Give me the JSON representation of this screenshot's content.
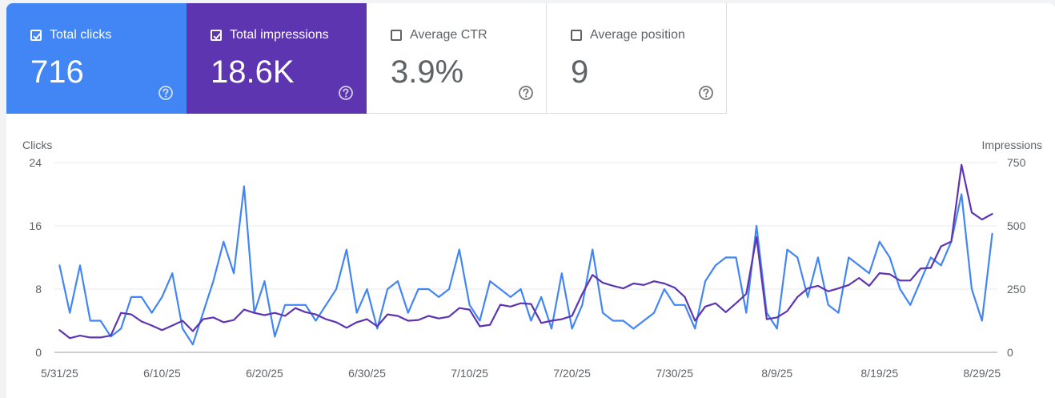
{
  "metrics": [
    {
      "label": "Total clicks",
      "value": "716",
      "checked": true,
      "color": "#4285f4",
      "help_icon": "help-circle-icon"
    },
    {
      "label": "Total impressions",
      "value": "18.6K",
      "checked": true,
      "color": "#5e35b1",
      "help_icon": "help-circle-icon"
    },
    {
      "label": "Average CTR",
      "value": "3.9%",
      "checked": false,
      "color": "#ffffff",
      "help_icon": "help-circle-icon"
    },
    {
      "label": "Average position",
      "value": "9",
      "checked": false,
      "color": "#ffffff",
      "help_icon": "help-circle-icon"
    }
  ],
  "chart_data": {
    "type": "line",
    "left_axis_label": "Clicks",
    "right_axis_label": "Impressions",
    "left_ylim": [
      0,
      24
    ],
    "left_ticks": [
      "0",
      "8",
      "16",
      "24"
    ],
    "right_ylim": [
      0,
      750
    ],
    "right_ticks": [
      "0",
      "250",
      "500",
      "750"
    ],
    "x_tick_labels": [
      "5/31/25",
      "6/10/25",
      "6/20/25",
      "6/30/25",
      "7/10/25",
      "7/20/25",
      "7/30/25",
      "8/9/25",
      "8/19/25",
      "8/29/25"
    ],
    "x_days": 93,
    "grid": true,
    "series": [
      {
        "axis": "left",
        "color": "#4285f4",
        "values": [
          11,
          5,
          11,
          4,
          4,
          2,
          3,
          7,
          7,
          5,
          7,
          10,
          3,
          1,
          5,
          9,
          14,
          10,
          21,
          5,
          9,
          2,
          6,
          6,
          6,
          4,
          6,
          8,
          13,
          5,
          8,
          3,
          8,
          9,
          5,
          8,
          8,
          7,
          8,
          13,
          6,
          4,
          9,
          8,
          7,
          8,
          4,
          7,
          3,
          10,
          3,
          6,
          13,
          5,
          4,
          4,
          3,
          4,
          5,
          8,
          6,
          6,
          3,
          9,
          11,
          12,
          12,
          5,
          16,
          5,
          3,
          13,
          12,
          7,
          12,
          6,
          5,
          12,
          11,
          10,
          14,
          12,
          8,
          6,
          9,
          12,
          11,
          14,
          20,
          8,
          4,
          15
        ]
      },
      {
        "axis": "right",
        "color": "#5e35b1",
        "values": [
          88,
          56,
          66,
          59,
          59,
          66,
          156,
          150,
          122,
          106,
          88,
          106,
          125,
          84,
          131,
          138,
          119,
          128,
          169,
          156,
          147,
          156,
          144,
          175,
          159,
          150,
          131,
          119,
          97,
          119,
          131,
          103,
          150,
          144,
          125,
          128,
          144,
          134,
          141,
          175,
          169,
          103,
          109,
          188,
          181,
          194,
          191,
          116,
          125,
          131,
          144,
          231,
          306,
          275,
          263,
          253,
          272,
          266,
          281,
          272,
          256,
          219,
          125,
          181,
          194,
          159,
          194,
          231,
          456,
          131,
          138,
          163,
          219,
          253,
          263,
          241,
          253,
          266,
          294,
          263,
          313,
          309,
          284,
          284,
          331,
          334,
          419,
          438,
          741,
          553,
          525,
          547
        ]
      }
    ]
  }
}
